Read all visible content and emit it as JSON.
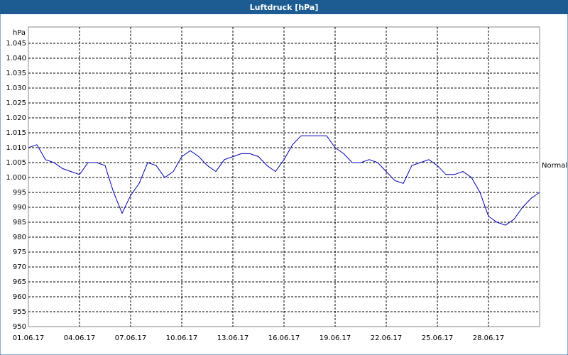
{
  "chart_data": {
    "type": "line",
    "title": "Luftdruck [hPa]",
    "y_label": "hPa",
    "x": [
      "2017-06-01T00:00",
      "2017-06-01T12:00",
      "2017-06-02T00:00",
      "2017-06-02T12:00",
      "2017-06-03T00:00",
      "2017-06-03T12:00",
      "2017-06-04T00:00",
      "2017-06-04T12:00",
      "2017-06-05T00:00",
      "2017-06-05T12:00",
      "2017-06-06T00:00",
      "2017-06-06T12:00",
      "2017-06-07T00:00",
      "2017-06-07T12:00",
      "2017-06-08T00:00",
      "2017-06-08T12:00",
      "2017-06-09T00:00",
      "2017-06-09T12:00",
      "2017-06-10T00:00",
      "2017-06-10T12:00",
      "2017-06-11T00:00",
      "2017-06-11T12:00",
      "2017-06-12T00:00",
      "2017-06-12T12:00",
      "2017-06-13T00:00",
      "2017-06-13T12:00",
      "2017-06-14T00:00",
      "2017-06-14T12:00",
      "2017-06-15T00:00",
      "2017-06-15T12:00",
      "2017-06-16T00:00",
      "2017-06-16T12:00",
      "2017-06-17T00:00",
      "2017-06-17T12:00",
      "2017-06-18T00:00",
      "2017-06-18T12:00",
      "2017-06-19T00:00",
      "2017-06-19T12:00",
      "2017-06-20T00:00",
      "2017-06-20T12:00",
      "2017-06-21T00:00",
      "2017-06-21T12:00",
      "2017-06-22T00:00",
      "2017-06-22T12:00",
      "2017-06-23T00:00",
      "2017-06-23T12:00",
      "2017-06-24T00:00",
      "2017-06-24T12:00",
      "2017-06-25T00:00",
      "2017-06-25T12:00",
      "2017-06-26T00:00",
      "2017-06-26T12:00",
      "2017-06-27T00:00",
      "2017-06-27T12:00",
      "2017-06-28T00:00",
      "2017-06-28T12:00",
      "2017-06-29T00:00",
      "2017-06-29T12:00",
      "2017-06-30T00:00",
      "2017-06-30T12:00",
      "2017-07-01T00:00"
    ],
    "series": [
      {
        "name": "Normal",
        "color": "#0000b0",
        "values": [
          1010,
          1011,
          1006,
          1005,
          1003,
          1002,
          1001,
          1005,
          1005,
          1004,
          995,
          988,
          994,
          998,
          1005,
          1004,
          1000,
          1002,
          1007,
          1009,
          1007,
          1004,
          1002,
          1006,
          1007,
          1008,
          1008,
          1007,
          1004,
          1002,
          1006,
          1011,
          1014,
          1014,
          1014,
          1014,
          1010,
          1008,
          1005,
          1005,
          1006,
          1005,
          1002,
          999,
          998,
          1004,
          1005,
          1006,
          1004,
          1001,
          1001,
          1002,
          1000,
          995,
          987,
          985,
          984,
          986,
          990,
          993,
          995
        ]
      }
    ],
    "xlim": [
      "2017-06-01T00:00",
      "2017-07-01T00:00"
    ],
    "xticks": [
      {
        "value": "2017-06-01T00:00",
        "label": "01.06.17"
      },
      {
        "value": "2017-06-04T00:00",
        "label": "04.06.17"
      },
      {
        "value": "2017-06-07T00:00",
        "label": "07.06.17"
      },
      {
        "value": "2017-06-10T00:00",
        "label": "10.06.17"
      },
      {
        "value": "2017-06-13T00:00",
        "label": "13.06.17"
      },
      {
        "value": "2017-06-16T00:00",
        "label": "16.06.17"
      },
      {
        "value": "2017-06-19T00:00",
        "label": "19.06.17"
      },
      {
        "value": "2017-06-22T00:00",
        "label": "22.06.17"
      },
      {
        "value": "2017-06-25T00:00",
        "label": "25.06.17"
      },
      {
        "value": "2017-06-28T00:00",
        "label": "28.06.17"
      }
    ],
    "ylim": [
      950,
      1050
    ],
    "yticks": [
      950,
      955,
      960,
      965,
      970,
      975,
      980,
      985,
      990,
      995,
      {
        "value": 1000,
        "label": "1.000"
      },
      {
        "value": 1005,
        "label": "1.005"
      },
      {
        "value": 1010,
        "label": "1.010"
      },
      {
        "value": 1015,
        "label": "1.015"
      },
      {
        "value": 1020,
        "label": "1.020"
      },
      {
        "value": 1025,
        "label": "1.025"
      },
      {
        "value": 1030,
        "label": "1.030"
      },
      {
        "value": 1035,
        "label": "1.035"
      },
      {
        "value": 1040,
        "label": "1.040"
      },
      {
        "value": 1045,
        "label": "1.045"
      }
    ],
    "grid": true
  }
}
